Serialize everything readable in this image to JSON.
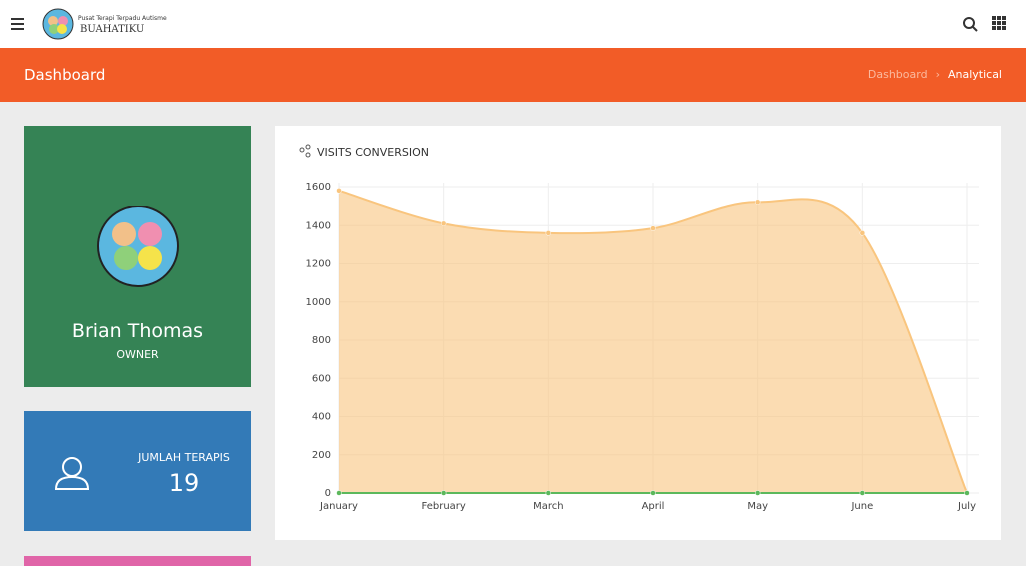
{
  "header": {
    "logo_line1": "Pusat Terapi Terpadu Autisme",
    "logo_line2": "BUAHATIKU"
  },
  "page_bar": {
    "title": "Dashboard",
    "breadcrumb": [
      "Dashboard",
      "Analytical"
    ]
  },
  "profile": {
    "name": "Brian Thomas",
    "role": "OWNER"
  },
  "stat": {
    "label": "JUMLAH TERAPIS",
    "value": 19
  },
  "chart_data": {
    "type": "area",
    "title": "VISITS CONVERSION",
    "categories": [
      "January",
      "February",
      "March",
      "April",
      "May",
      "June",
      "July"
    ],
    "series": [
      {
        "color": "#f9c57e",
        "values": [
          1580,
          1410,
          1360,
          1385,
          1520,
          1360,
          0
        ]
      },
      {
        "color": "#5cb85c",
        "values": [
          0,
          0,
          0,
          0,
          0,
          0,
          0
        ]
      }
    ],
    "ylim": [
      0,
      1600
    ],
    "yticks": [
      0,
      200,
      400,
      600,
      800,
      1000,
      1200,
      1400,
      1600
    ],
    "grid": true
  }
}
